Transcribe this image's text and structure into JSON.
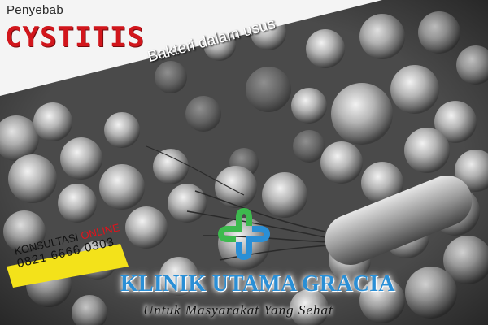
{
  "header": {
    "subtitle": "Penyebab",
    "title": "CYSTITIS"
  },
  "caption": "Bakteri dalam usus",
  "promo": {
    "label": "KONSULTASI",
    "label_highlight": "ONLINE",
    "phone": "0821 6666 0303"
  },
  "clinic": {
    "name": "KLINIK UTAMA GRACIA",
    "tagline": "Untuk Masyarakat Yang Sehat"
  },
  "colors": {
    "title_red": "#d2161c",
    "promo_yellow": "#f3e21a",
    "clinic_blue": "#2a8fd6",
    "logo_green": "#3dba4e"
  },
  "icons": {
    "logo": "medical-cross-logo-icon"
  }
}
